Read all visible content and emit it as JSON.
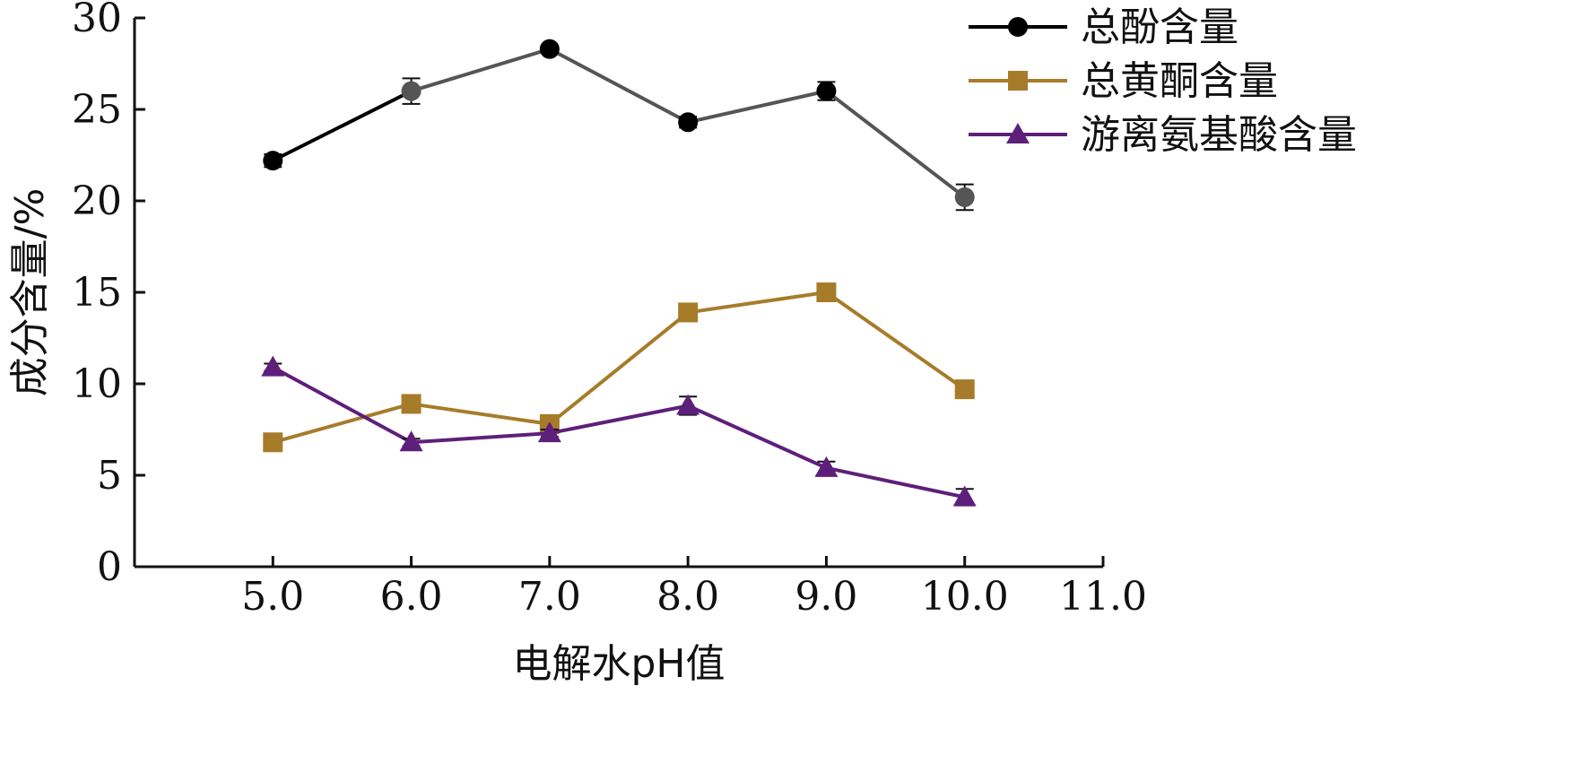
{
  "chart_data": {
    "type": "line",
    "title": "",
    "xlabel": "电解水pH值",
    "ylabel": "成分含量/%",
    "xlim": [
      4.0,
      11.0
    ],
    "ylim": [
      0,
      30
    ],
    "x_ticks": [
      "5.0",
      "6.0",
      "7.0",
      "8.0",
      "9.0",
      "10.0",
      "11.0"
    ],
    "y_ticks": [
      "0",
      "5",
      "10",
      "15",
      "20",
      "25",
      "30"
    ],
    "x": [
      5.0,
      6.0,
      7.0,
      8.0,
      9.0,
      10.0
    ],
    "grid": false,
    "legend_position": "top-right",
    "series": [
      {
        "name": "总酚含量",
        "values": [
          22.2,
          26.0,
          28.3,
          24.3,
          26.0,
          20.2
        ],
        "errors": [
          0.35,
          0.7,
          0.2,
          0.3,
          0.5,
          0.7
        ],
        "marker": "circle",
        "color": "#000000",
        "line_colors": [
          "#000000",
          "#555555",
          "#555555",
          "#555555",
          "#555555"
        ]
      },
      {
        "name": "总黄酮含量",
        "values": [
          6.8,
          8.9,
          7.8,
          13.9,
          15.0,
          9.7
        ],
        "errors": [
          0.15,
          0.2,
          0.2,
          0.2,
          0.2,
          0.2
        ],
        "marker": "square",
        "color": "#A67C2A"
      },
      {
        "name": "游离氨基酸含量",
        "values": [
          10.9,
          6.8,
          7.3,
          8.8,
          5.4,
          3.8
        ],
        "errors": [
          0.2,
          0.2,
          0.2,
          0.5,
          0.35,
          0.45
        ],
        "marker": "triangle",
        "color": "#5E1F7A"
      }
    ]
  }
}
